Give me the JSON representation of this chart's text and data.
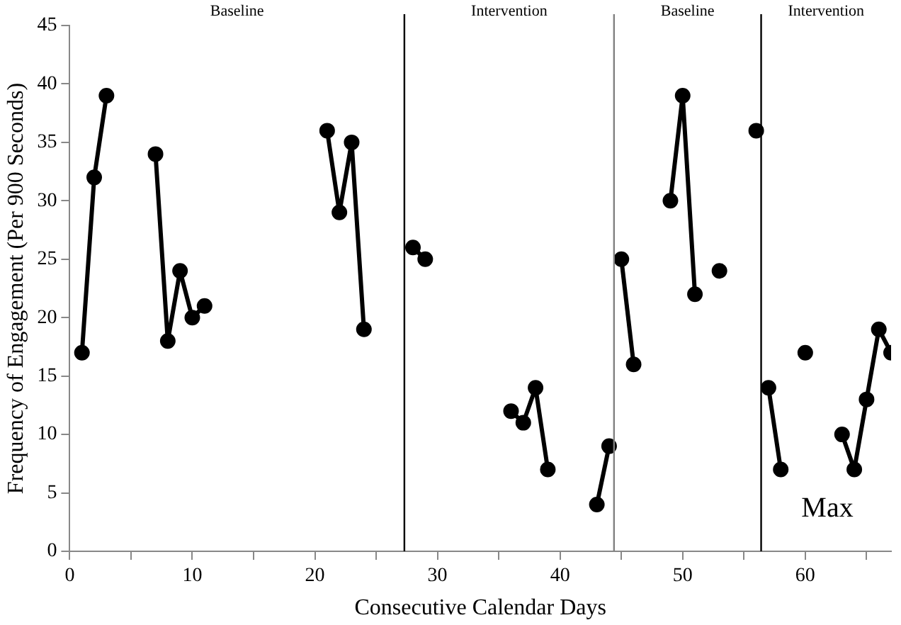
{
  "chart_data": {
    "type": "line",
    "xlabel": "Consecutive Calendar Days",
    "ylabel": "Frequency of Engagement (Per 900 Seconds)",
    "xlim": [
      0,
      67
    ],
    "xticks": [
      0,
      {
        "value": 5,
        "label": null
      },
      10,
      {
        "value": 15,
        "label": null
      },
      20,
      {
        "value": 25,
        "label": null
      },
      30,
      {
        "value": 35,
        "label": null
      },
      40,
      {
        "value": 45,
        "label": null
      },
      50,
      {
        "value": 55,
        "label": null
      },
      60,
      {
        "value": 65,
        "label": null
      }
    ],
    "ylim": [
      0,
      45
    ],
    "yticks": [
      0,
      5,
      10,
      15,
      20,
      25,
      30,
      35,
      40,
      45
    ],
    "grid": false,
    "legend": false,
    "marker": "circle",
    "line_style": "solid",
    "series": [
      {
        "color": "#000000",
        "x": [
          1,
          2,
          3
        ],
        "values": [
          17,
          32,
          39
        ]
      },
      {
        "color": "#000000",
        "x": [
          7,
          8,
          9,
          10,
          11
        ],
        "values": [
          34,
          18,
          24,
          20,
          21
        ]
      },
      {
        "color": "#000000",
        "x": [
          21,
          22,
          23,
          24
        ],
        "values": [
          36,
          29,
          35,
          19
        ]
      },
      {
        "color": "#000000",
        "x": [
          28,
          29
        ],
        "values": [
          26,
          25
        ]
      },
      {
        "color": "#000000",
        "x": [
          36,
          37,
          38,
          39
        ],
        "values": [
          12,
          11,
          14,
          7
        ]
      },
      {
        "color": "#000000",
        "x": [
          43,
          44
        ],
        "values": [
          4,
          9
        ]
      },
      {
        "color": "#000000",
        "x": [
          45,
          46
        ],
        "values": [
          25,
          16
        ]
      },
      {
        "color": "#000000",
        "x": [
          49,
          50,
          51
        ],
        "values": [
          30,
          39,
          22
        ]
      },
      {
        "color": "#000000",
        "x": [
          53
        ],
        "values": [
          24
        ]
      },
      {
        "color": "#000000",
        "x": [
          56
        ],
        "values": [
          36
        ]
      },
      {
        "color": "#000000",
        "x": [
          57,
          58
        ],
        "values": [
          14,
          7
        ]
      },
      {
        "color": "#000000",
        "x": [
          60
        ],
        "values": [
          17
        ]
      },
      {
        "color": "#000000",
        "x": [
          63,
          64,
          65,
          66,
          67
        ],
        "values": [
          10,
          7,
          13,
          19,
          17
        ]
      }
    ],
    "ref_lines": [
      {
        "axis": "x",
        "value": 27.3,
        "label": null,
        "color": "#000000"
      },
      {
        "axis": "x",
        "value": 44.4,
        "label": null,
        "color": "#808080"
      },
      {
        "axis": "x",
        "value": 56.4,
        "label": null,
        "color": "#000000"
      }
    ],
    "annotations": [
      "Baseline",
      "Intervention",
      "Baseline",
      "Intervention",
      "Max"
    ]
  }
}
